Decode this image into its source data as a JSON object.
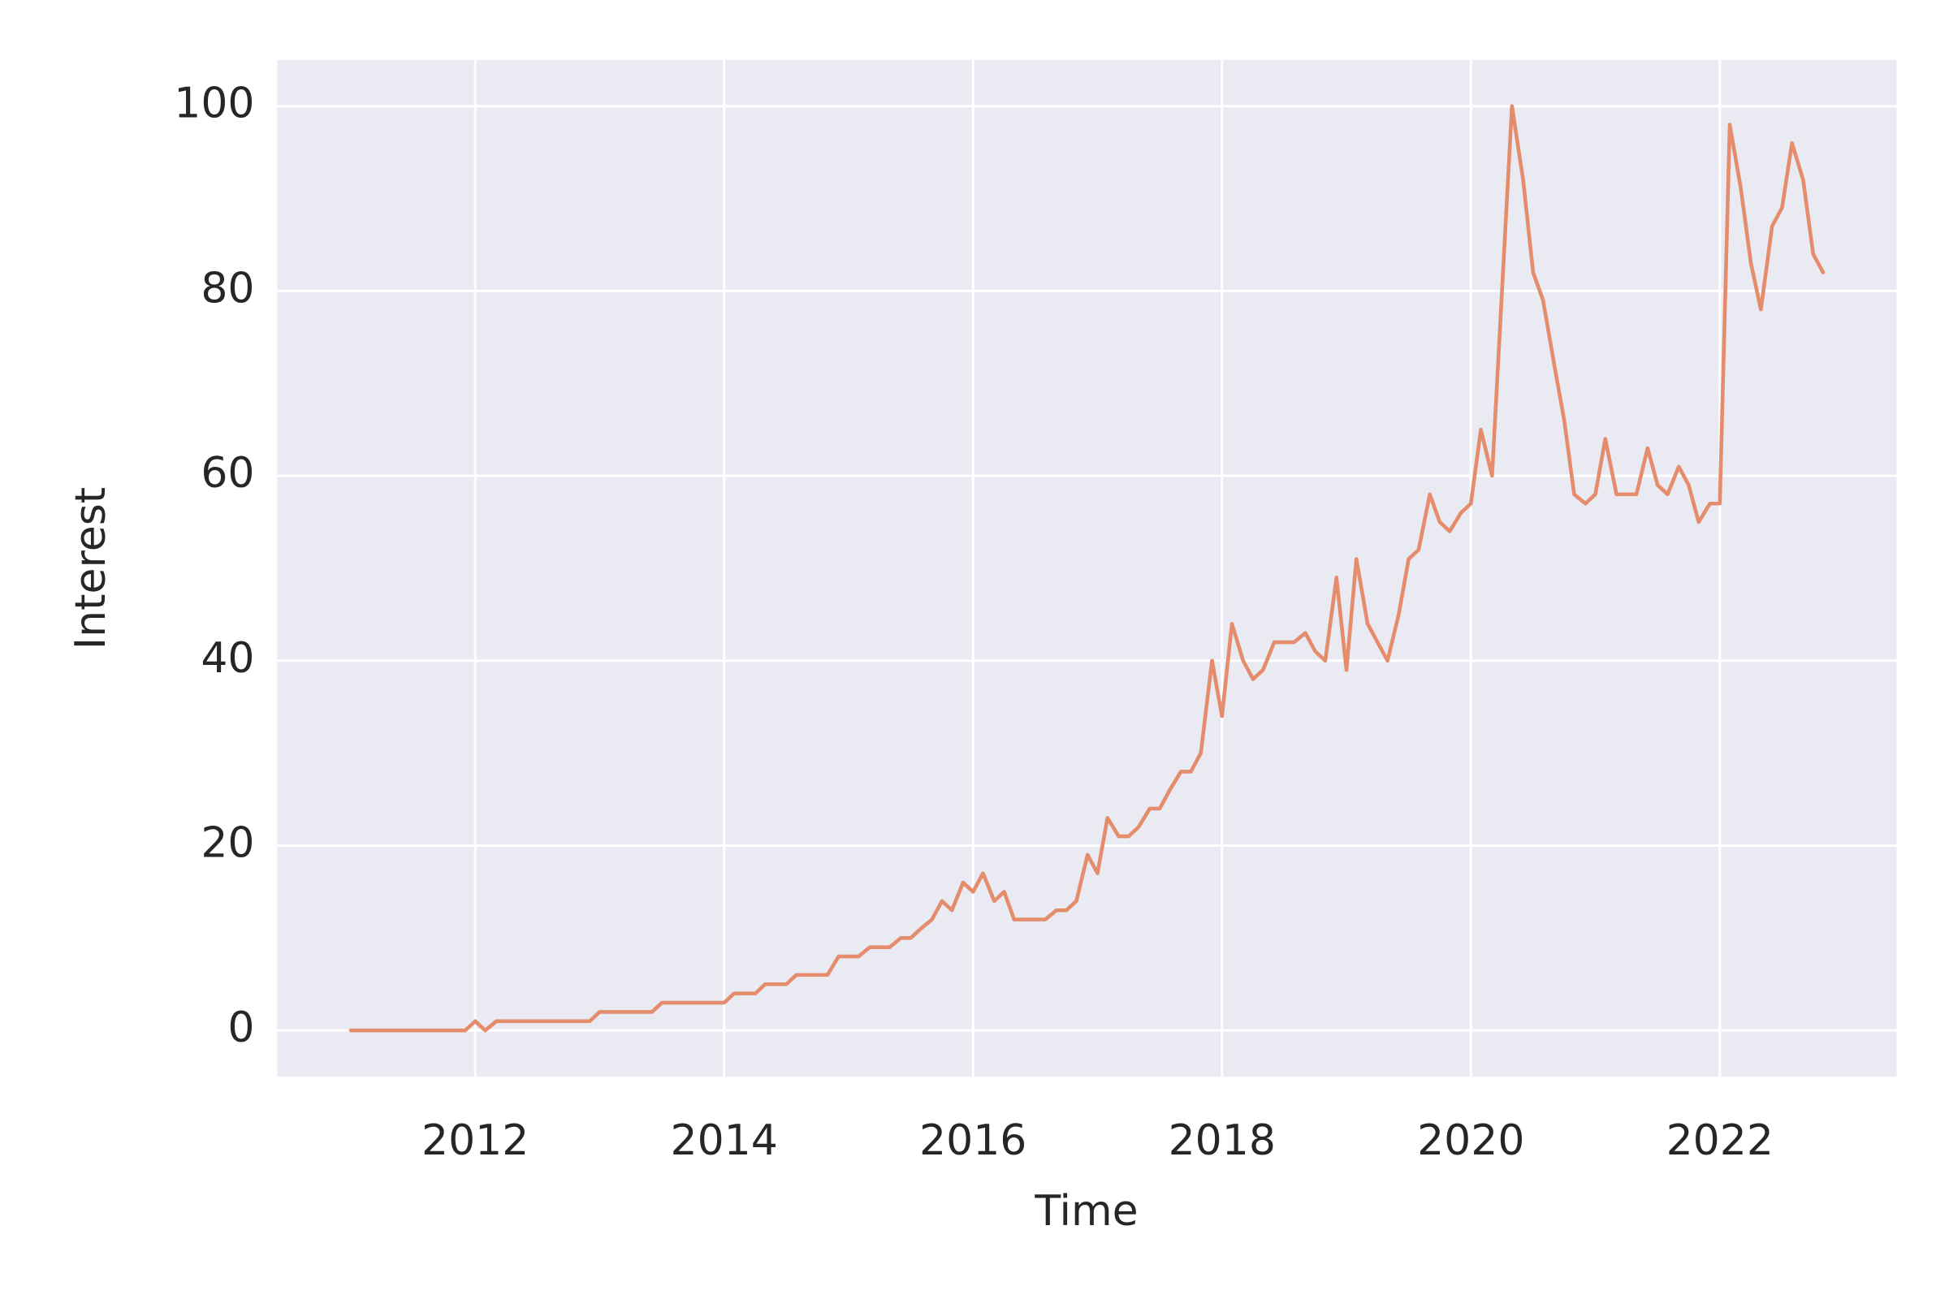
{
  "chart_data": {
    "type": "line",
    "xlabel": "Time",
    "ylabel": "Interest",
    "x": [
      2011.0,
      2011.08,
      2011.17,
      2011.25,
      2011.33,
      2011.42,
      2011.5,
      2011.58,
      2011.67,
      2011.75,
      2011.83,
      2011.92,
      2012.0,
      2012.08,
      2012.17,
      2012.25,
      2012.33,
      2012.42,
      2012.5,
      2012.58,
      2012.67,
      2012.75,
      2012.83,
      2012.92,
      2013.0,
      2013.08,
      2013.17,
      2013.25,
      2013.33,
      2013.42,
      2013.5,
      2013.58,
      2013.67,
      2013.75,
      2013.83,
      2013.92,
      2014.0,
      2014.08,
      2014.17,
      2014.25,
      2014.33,
      2014.42,
      2014.5,
      2014.58,
      2014.67,
      2014.75,
      2014.83,
      2014.92,
      2015.0,
      2015.08,
      2015.17,
      2015.25,
      2015.33,
      2015.42,
      2015.5,
      2015.58,
      2015.67,
      2015.75,
      2015.83,
      2015.92,
      2016.0,
      2016.08,
      2016.17,
      2016.25,
      2016.33,
      2016.42,
      2016.5,
      2016.58,
      2016.67,
      2016.75,
      2016.83,
      2016.92,
      2017.0,
      2017.08,
      2017.17,
      2017.25,
      2017.33,
      2017.42,
      2017.5,
      2017.58,
      2017.67,
      2017.75,
      2017.83,
      2017.92,
      2018.0,
      2018.08,
      2018.17,
      2018.25,
      2018.33,
      2018.42,
      2018.5,
      2018.58,
      2018.67,
      2018.75,
      2018.83,
      2018.92,
      2019.0,
      2019.08,
      2019.17,
      2019.25,
      2019.33,
      2019.42,
      2019.5,
      2019.58,
      2019.67,
      2019.75,
      2019.83,
      2019.92,
      2020.0,
      2020.08,
      2020.17,
      2020.25,
      2020.33,
      2020.42,
      2020.5,
      2020.58,
      2020.67,
      2020.75,
      2020.83,
      2020.92,
      2021.0,
      2021.08,
      2021.17,
      2021.25,
      2021.33,
      2021.42,
      2021.5,
      2021.58,
      2021.67,
      2021.75,
      2021.83,
      2021.92,
      2022.0,
      2022.08,
      2022.17,
      2022.25,
      2022.33,
      2022.42,
      2022.5,
      2022.58,
      2022.67,
      2022.75,
      2022.83
    ],
    "series": [
      {
        "color": "#e48c6c",
        "values": [
          0,
          0,
          0,
          0,
          0,
          0,
          0,
          0,
          0,
          0,
          0,
          0,
          1,
          0,
          1,
          1,
          1,
          1,
          1,
          1,
          1,
          1,
          1,
          1,
          2,
          2,
          2,
          2,
          2,
          2,
          3,
          3,
          3,
          3,
          3,
          3,
          3,
          4,
          4,
          4,
          5,
          5,
          5,
          6,
          6,
          6,
          6,
          8,
          8,
          8,
          9,
          9,
          9,
          10,
          10,
          11,
          12,
          14,
          13,
          16,
          15,
          17,
          14,
          15,
          12,
          12,
          12,
          12,
          13,
          13,
          14,
          19,
          17,
          23,
          21,
          21,
          22,
          24,
          24,
          26,
          28,
          28,
          30,
          40,
          34,
          44,
          40,
          38,
          39,
          42,
          42,
          42,
          43,
          41,
          40,
          49,
          39,
          51,
          44,
          42,
          40,
          45,
          51,
          52,
          58,
          55,
          54,
          56,
          57,
          65,
          60,
          80,
          100,
          92,
          82,
          79,
          72,
          66,
          58,
          57,
          58,
          64,
          58,
          58,
          58,
          63,
          59,
          58,
          61,
          59,
          55,
          57,
          57,
          98,
          91,
          83,
          78,
          87,
          89,
          96,
          92,
          84,
          82
        ]
      }
    ],
    "xlim": [
      2010.41,
      2023.42
    ],
    "ylim": [
      -5,
      105
    ],
    "xticks": [
      2012,
      2014,
      2016,
      2018,
      2020,
      2022
    ],
    "yticks": [
      0,
      20,
      40,
      60,
      80,
      100
    ],
    "grid": true
  }
}
